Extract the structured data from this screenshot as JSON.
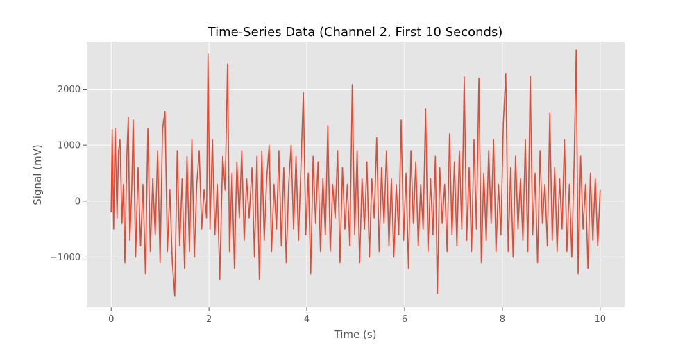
{
  "chart_data": {
    "type": "line",
    "title": "Time-Series Data (Channel 2, First 10 Seconds)",
    "xlabel": "Time (s)",
    "ylabel": "Signal (mV)",
    "xlim": [
      -0.5,
      10.5
    ],
    "ylim": [
      -1900,
      2850
    ],
    "xticks": [
      0,
      2,
      4,
      6,
      8,
      10
    ],
    "yticks": [
      -1000,
      0,
      1000,
      2000
    ],
    "ytick_labels": [
      "−1000",
      "0",
      "1000",
      "2000"
    ],
    "grid": true,
    "background_color": "#e5e5e5",
    "series": [
      {
        "color": "#e24a33",
        "x_range": [
          0,
          10
        ],
        "points": [
          [
            0.0,
            -200
          ],
          [
            0.02,
            1280
          ],
          [
            0.05,
            -500
          ],
          [
            0.08,
            1300
          ],
          [
            0.12,
            -300
          ],
          [
            0.15,
            900
          ],
          [
            0.18,
            1100
          ],
          [
            0.22,
            -400
          ],
          [
            0.25,
            300
          ],
          [
            0.28,
            -1100
          ],
          [
            0.32,
            800
          ],
          [
            0.35,
            1500
          ],
          [
            0.38,
            -700
          ],
          [
            0.42,
            200
          ],
          [
            0.45,
            1450
          ],
          [
            0.5,
            -1000
          ],
          [
            0.55,
            600
          ],
          [
            0.6,
            -800
          ],
          [
            0.65,
            300
          ],
          [
            0.7,
            -1300
          ],
          [
            0.75,
            1300
          ],
          [
            0.8,
            -900
          ],
          [
            0.85,
            400
          ],
          [
            0.9,
            -600
          ],
          [
            0.95,
            900
          ],
          [
            1.0,
            -1100
          ],
          [
            1.05,
            1300
          ],
          [
            1.1,
            1600
          ],
          [
            1.15,
            -900
          ],
          [
            1.2,
            200
          ],
          [
            1.25,
            -1100
          ],
          [
            1.3,
            -1700
          ],
          [
            1.35,
            900
          ],
          [
            1.4,
            -800
          ],
          [
            1.45,
            400
          ],
          [
            1.5,
            -1200
          ],
          [
            1.55,
            800
          ],
          [
            1.6,
            -900
          ],
          [
            1.65,
            1100
          ],
          [
            1.7,
            -1000
          ],
          [
            1.75,
            300
          ],
          [
            1.8,
            900
          ],
          [
            1.85,
            -500
          ],
          [
            1.9,
            200
          ],
          [
            1.95,
            -300
          ],
          [
            1.98,
            2630
          ],
          [
            2.02,
            -500
          ],
          [
            2.07,
            1100
          ],
          [
            2.12,
            -600
          ],
          [
            2.17,
            300
          ],
          [
            2.22,
            -1400
          ],
          [
            2.28,
            800
          ],
          [
            2.33,
            200
          ],
          [
            2.38,
            2450
          ],
          [
            2.42,
            -900
          ],
          [
            2.47,
            500
          ],
          [
            2.52,
            -1200
          ],
          [
            2.57,
            700
          ],
          [
            2.62,
            -300
          ],
          [
            2.67,
            900
          ],
          [
            2.72,
            -700
          ],
          [
            2.77,
            400
          ],
          [
            2.82,
            -300
          ],
          [
            2.88,
            600
          ],
          [
            2.93,
            -1000
          ],
          [
            2.98,
            800
          ],
          [
            3.03,
            -1400
          ],
          [
            3.08,
            900
          ],
          [
            3.13,
            -700
          ],
          [
            3.18,
            400
          ],
          [
            3.23,
            1000
          ],
          [
            3.28,
            -900
          ],
          [
            3.33,
            300
          ],
          [
            3.38,
            -500
          ],
          [
            3.43,
            900
          ],
          [
            3.48,
            -800
          ],
          [
            3.53,
            600
          ],
          [
            3.58,
            -1100
          ],
          [
            3.63,
            300
          ],
          [
            3.68,
            1000
          ],
          [
            3.73,
            -500
          ],
          [
            3.78,
            800
          ],
          [
            3.83,
            -700
          ],
          [
            3.88,
            600
          ],
          [
            3.93,
            1940
          ],
          [
            3.98,
            -600
          ],
          [
            4.03,
            500
          ],
          [
            4.08,
            -1300
          ],
          [
            4.13,
            800
          ],
          [
            4.18,
            -400
          ],
          [
            4.23,
            700
          ],
          [
            4.28,
            -900
          ],
          [
            4.33,
            400
          ],
          [
            4.38,
            -600
          ],
          [
            4.43,
            1350
          ],
          [
            4.48,
            -900
          ],
          [
            4.53,
            300
          ],
          [
            4.58,
            -300
          ],
          [
            4.63,
            900
          ],
          [
            4.68,
            -1100
          ],
          [
            4.73,
            600
          ],
          [
            4.78,
            -500
          ],
          [
            4.83,
            300
          ],
          [
            4.88,
            -800
          ],
          [
            4.93,
            2080
          ],
          [
            4.98,
            -600
          ],
          [
            5.03,
            900
          ],
          [
            5.08,
            -1100
          ],
          [
            5.13,
            400
          ],
          [
            5.18,
            -500
          ],
          [
            5.23,
            700
          ],
          [
            5.28,
            -1000
          ],
          [
            5.33,
            400
          ],
          [
            5.38,
            -300
          ],
          [
            5.43,
            1130
          ],
          [
            5.48,
            -900
          ],
          [
            5.53,
            600
          ],
          [
            5.58,
            -400
          ],
          [
            5.63,
            900
          ],
          [
            5.68,
            -800
          ],
          [
            5.73,
            400
          ],
          [
            5.78,
            -1000
          ],
          [
            5.83,
            300
          ],
          [
            5.88,
            -600
          ],
          [
            5.93,
            1450
          ],
          [
            5.98,
            -700
          ],
          [
            6.03,
            500
          ],
          [
            6.08,
            -1200
          ],
          [
            6.13,
            900
          ],
          [
            6.18,
            -400
          ],
          [
            6.23,
            700
          ],
          [
            6.28,
            -800
          ],
          [
            6.33,
            300
          ],
          [
            6.38,
            -500
          ],
          [
            6.43,
            1650
          ],
          [
            6.48,
            -900
          ],
          [
            6.53,
            400
          ],
          [
            6.58,
            -600
          ],
          [
            6.63,
            800
          ],
          [
            6.67,
            -1650
          ],
          [
            6.72,
            600
          ],
          [
            6.77,
            -400
          ],
          [
            6.82,
            300
          ],
          [
            6.87,
            -900
          ],
          [
            6.92,
            1200
          ],
          [
            6.97,
            -600
          ],
          [
            7.02,
            700
          ],
          [
            7.07,
            -800
          ],
          [
            7.12,
            900
          ],
          [
            7.17,
            -500
          ],
          [
            7.22,
            2220
          ],
          [
            7.27,
            -700
          ],
          [
            7.32,
            600
          ],
          [
            7.37,
            -900
          ],
          [
            7.42,
            1100
          ],
          [
            7.47,
            -500
          ],
          [
            7.52,
            2200
          ],
          [
            7.57,
            -1100
          ],
          [
            7.62,
            500
          ],
          [
            7.67,
            -700
          ],
          [
            7.72,
            900
          ],
          [
            7.77,
            -400
          ],
          [
            7.82,
            1100
          ],
          [
            7.87,
            -900
          ],
          [
            7.92,
            300
          ],
          [
            7.97,
            -600
          ],
          [
            8.02,
            1400
          ],
          [
            8.07,
            2280
          ],
          [
            8.12,
            -900
          ],
          [
            8.17,
            600
          ],
          [
            8.22,
            -1000
          ],
          [
            8.27,
            800
          ],
          [
            8.32,
            -500
          ],
          [
            8.37,
            400
          ],
          [
            8.42,
            -700
          ],
          [
            8.47,
            1100
          ],
          [
            8.52,
            -900
          ],
          [
            8.57,
            2230
          ],
          [
            8.62,
            -600
          ],
          [
            8.67,
            500
          ],
          [
            8.72,
            -1100
          ],
          [
            8.77,
            900
          ],
          [
            8.82,
            -400
          ],
          [
            8.87,
            300
          ],
          [
            8.92,
            -800
          ],
          [
            8.97,
            1570
          ],
          [
            9.02,
            -700
          ],
          [
            9.07,
            600
          ],
          [
            9.12,
            -900
          ],
          [
            9.17,
            400
          ],
          [
            9.22,
            -500
          ],
          [
            9.27,
            1100
          ],
          [
            9.32,
            -900
          ],
          [
            9.37,
            300
          ],
          [
            9.42,
            -1000
          ],
          [
            9.47,
            800
          ],
          [
            9.51,
            2700
          ],
          [
            9.55,
            -1300
          ],
          [
            9.6,
            800
          ],
          [
            9.65,
            -500
          ],
          [
            9.7,
            300
          ],
          [
            9.75,
            -1200
          ],
          [
            9.8,
            500
          ],
          [
            9.85,
            -700
          ],
          [
            9.9,
            400
          ],
          [
            9.95,
            -800
          ],
          [
            10.0,
            200
          ]
        ]
      }
    ]
  }
}
